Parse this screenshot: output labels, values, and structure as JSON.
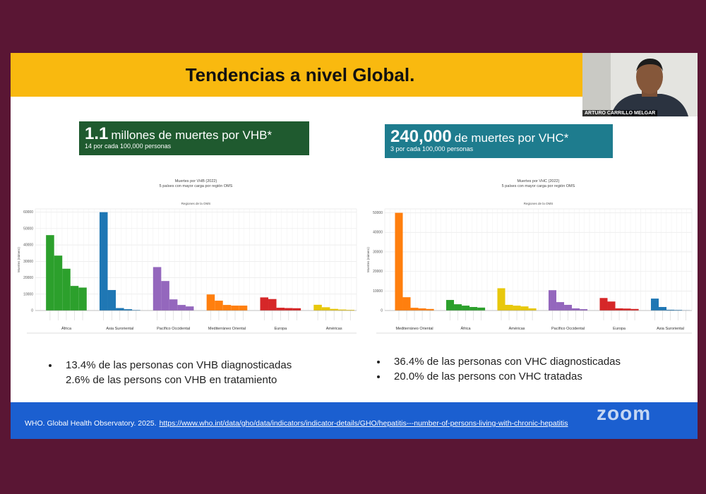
{
  "slide_title": "Tendencias a nivel Global.",
  "participant_name": "ARTURO CARRILLO MELGAR",
  "stat_boxes": [
    {
      "number": "1.1",
      "text": "millones de muertes por VHB*",
      "sub": "14 por cada 100,000 personas"
    },
    {
      "number": "240,000",
      "text": "de muertes por VHC*",
      "sub": "3 por cada 100,000 personas"
    }
  ],
  "charts": [
    {
      "title": "Muertes por VHB (2022)",
      "subtitle": "5 países con mayor carga por región OMS",
      "x_label": "Regiones de la OMS",
      "y_label": "Muertes (número)",
      "ylim": [
        0,
        62000
      ],
      "yticks": [
        0,
        10000,
        20000,
        30000,
        40000,
        50000,
        60000
      ],
      "groups": [
        {
          "name": "África",
          "color": "#2ca02c",
          "values": [
            46000,
            33500,
            25500,
            15000,
            14000
          ]
        },
        {
          "name": "Asia Suroriental",
          "color": "#1f77b4",
          "values": [
            60000,
            12500,
            1500,
            800,
            300
          ]
        },
        {
          "name": "Pacífico Occidental",
          "color": "#9467bd",
          "values": [
            26500,
            18000,
            6800,
            3400,
            2500
          ]
        },
        {
          "name": "Mediterráneo Oriental",
          "color": "#ff7f0e",
          "values": [
            9800,
            6000,
            3400,
            3000,
            3000
          ]
        },
        {
          "name": "Europa",
          "color": "#d62728",
          "values": [
            8000,
            7000,
            1700,
            1500,
            1400
          ]
        },
        {
          "name": "Américas",
          "color": "#e8c80c",
          "values": [
            3500,
            2000,
            1000,
            600,
            400
          ]
        }
      ]
    },
    {
      "title": "Muertes por VHC (2022)",
      "subtitle": "5 países con mayor carga por región OMS",
      "x_label": "Regiones de la OMS",
      "y_label": "Muertes (número)",
      "ylim": [
        0,
        52000
      ],
      "yticks": [
        0,
        10000,
        20000,
        30000,
        40000,
        50000
      ],
      "groups": [
        {
          "name": "Mediterráneo Oriental",
          "color": "#ff7f0e",
          "values": [
            50000,
            6800,
            1400,
            1100,
            800
          ]
        },
        {
          "name": "África",
          "color": "#2ca02c",
          "values": [
            5400,
            3200,
            2500,
            1800,
            1500
          ]
        },
        {
          "name": "Américas",
          "color": "#e8c80c",
          "values": [
            11400,
            2900,
            2500,
            2100,
            1100
          ]
        },
        {
          "name": "Pacífico Occidental",
          "color": "#9467bd",
          "values": [
            10400,
            4300,
            2900,
            1100,
            700
          ]
        },
        {
          "name": "Europa",
          "color": "#d62728",
          "values": [
            6400,
            4600,
            1100,
            1000,
            800
          ]
        },
        {
          "name": "Asia Suroriental",
          "color": "#1f77b4",
          "values": [
            6100,
            1800,
            400,
            300,
            100
          ]
        }
      ]
    }
  ],
  "bullets_left": [
    "13.4% de las personas con VHB diagnosticadas",
    "2.6% de las persons con VHB en tratamiento"
  ],
  "bullets_right": [
    "36.4% de las personas con VHC diagnosticadas",
    "20.0% de las persons con VHC tratadas"
  ],
  "footer": {
    "citation": "WHO. Global Health Observatory. 2025.",
    "link": "https://www.who.int/data/gho/data/indicators/indicator-details/GHO/hepatitis---number-of-persons-living-with-chronic-hepatitis"
  },
  "zoom_watermark": "zoom"
}
